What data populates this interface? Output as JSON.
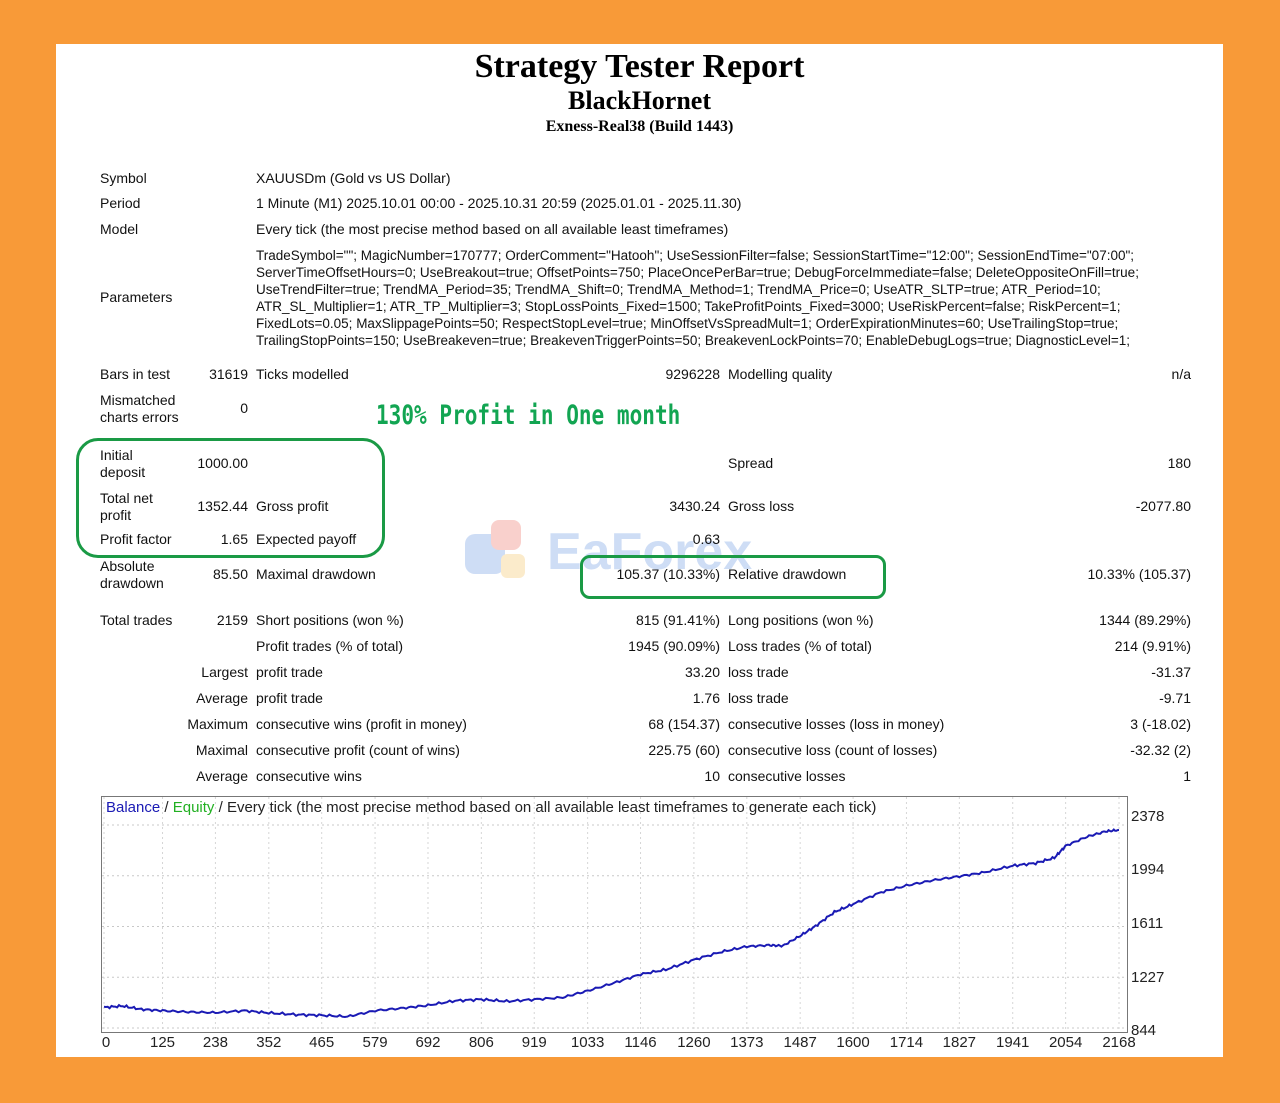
{
  "report": {
    "title": "Strategy Tester Report",
    "expert": "BlackHornet",
    "server": "Exness-Real38 (Build 1443)"
  },
  "info": {
    "symbol_label": "Symbol",
    "symbol_value": "XAUUSDm (Gold vs US Dollar)",
    "period_label": "Period",
    "period_value": "1 Minute (M1) 2025.10.01 00:00 - 2025.10.31 20:59 (2025.01.01 - 2025.11.30)",
    "model_label": "Model",
    "model_value": "Every tick (the most precise method based on all available least timeframes)",
    "parameters_label": "Parameters",
    "parameters_value": "TradeSymbol=\"\"; MagicNumber=170777; OrderComment=\"Hatooh\"; UseSessionFilter=false; SessionStartTime=\"12:00\"; SessionEndTime=\"07:00\";\nServerTimeOffsetHours=0; UseBreakout=true; OffsetPoints=750; PlaceOncePerBar=true; DebugForceImmediate=false; DeleteOppositeOnFill=true;\nUseTrendFilter=true; TrendMA_Period=35; TrendMA_Shift=0; TrendMA_Method=1; TrendMA_Price=0; UseATR_SLTP=true; ATR_Period=10;\nATR_SL_Multiplier=1; ATR_TP_Multiplier=3; StopLossPoints_Fixed=1500; TakeProfitPoints_Fixed=3000; UseRiskPercent=false; RiskPercent=1;\nFixedLots=0.05; MaxSlippagePoints=50; RespectStopLevel=true; MinOffsetVsSpreadMult=1; OrderExpirationMinutes=60; UseTrailingStop=true;\nTrailingStopPoints=150; UseBreakeven=true; BreakevenTriggerPoints=50; BreakevenLockPoints=70; EnableDebugLogs=true; DiagnosticLevel=1;"
  },
  "stats": {
    "bars_label": "Bars in test",
    "bars_value": "31619",
    "ticks_label": "Ticks modelled",
    "ticks_value": "9296228",
    "quality_label": "Modelling quality",
    "quality_value": "n/a",
    "mismatched_label_1": "Mismatched",
    "mismatched_label_2": "charts errors",
    "mismatched_value": "0",
    "initial_label_1": "Initial",
    "initial_label_2": "deposit",
    "initial_value": "1000.00",
    "spread_label": "Spread",
    "spread_value": "180",
    "net_label_1": "Total net",
    "net_label_2": "profit",
    "net_value": "1352.44",
    "gross_profit_label": "Gross profit",
    "gross_profit_value": "3430.24",
    "gross_loss_label": "Gross loss",
    "gross_loss_value": "-2077.80",
    "pf_label": "Profit factor",
    "pf_value": "1.65",
    "ep_label": "Expected payoff",
    "ep_value": "0.63",
    "abs_dd_label_1": "Absolute",
    "abs_dd_label_2": "drawdown",
    "abs_dd_value": "85.50",
    "max_dd_label": "Maximal drawdown",
    "max_dd_value": "105.37 (10.33%)",
    "rel_dd_label": "Relative drawdown",
    "rel_dd_value": "10.33% (105.37)",
    "total_trades_label": "Total trades",
    "total_trades_value": "2159",
    "short_label": "Short positions (won %)",
    "short_value": "815 (91.41%)",
    "long_label": "Long positions (won %)",
    "long_value": "1344 (89.29%)",
    "profit_trades_label": "Profit trades (% of total)",
    "profit_trades_value": "1945 (90.09%)",
    "loss_trades_label": "Loss trades (% of total)",
    "loss_trades_value": "214 (9.91%)",
    "largest_label": "Largest",
    "largest_profit_label": "profit trade",
    "largest_profit_value": "33.20",
    "largest_loss_label": "loss trade",
    "largest_loss_value": "-31.37",
    "average_label": "Average",
    "average_profit_label": "profit trade",
    "average_profit_value": "1.76",
    "average_loss_label": "loss trade",
    "average_loss_value": "-9.71",
    "maximum_label": "Maximum",
    "max_cons_wins_label": "consecutive wins (profit in money)",
    "max_cons_wins_value": "68 (154.37)",
    "max_cons_losses_label": "consecutive losses (loss in money)",
    "max_cons_losses_value": "3 (-18.02)",
    "maximal_label": "Maximal",
    "maximal_cons_profit_label": "consecutive profit (count of wins)",
    "maximal_cons_profit_value": "225.75 (60)",
    "maximal_cons_loss_label": "consecutive loss (count of losses)",
    "maximal_cons_loss_value": "-32.32 (2)",
    "average2_label": "Average",
    "avg_cons_wins_label": "consecutive wins",
    "avg_cons_wins_value": "10",
    "avg_cons_losses_label": "consecutive losses",
    "avg_cons_losses_value": "1"
  },
  "overlay": {
    "caption": "130% Profit in One month",
    "highlight_color": "#1a9a45",
    "watermark": "EaForex"
  },
  "chart_data": {
    "type": "line",
    "title_parts": [
      "Balance",
      "Equity",
      "Every tick (the most precise method based on all available least timeframes to generate each tick)"
    ],
    "legend_separator": "/",
    "colors": {
      "balance": "#1a1ab4",
      "equity": "#22b022"
    },
    "yticks": [
      "2378",
      "1994",
      "1611",
      "1227",
      "844"
    ],
    "xticks": [
      "0",
      "125",
      "238",
      "352",
      "465",
      "579",
      "692",
      "806",
      "919",
      "1033",
      "1146",
      "1260",
      "1373",
      "1487",
      "1600",
      "1714",
      "1827",
      "1941",
      "2054",
      "2168"
    ],
    "ylim": [
      844,
      2378
    ],
    "xlim": [
      0,
      2168
    ],
    "series": [
      {
        "name": "Balance",
        "x": [
          0,
          40,
          80,
          125,
          180,
          238,
          300,
          352,
          410,
          465,
          520,
          579,
          640,
          692,
          750,
          806,
          860,
          919,
          980,
          1033,
          1090,
          1146,
          1200,
          1260,
          1320,
          1373,
          1420,
          1450,
          1487,
          1520,
          1560,
          1600,
          1660,
          1714,
          1770,
          1827,
          1880,
          1941,
          1990,
          2030,
          2054,
          2100,
          2140,
          2168
        ],
        "values": [
          1000,
          1010,
          985,
          975,
          965,
          960,
          975,
          958,
          945,
          940,
          930,
          975,
          995,
          1015,
          1050,
          1060,
          1045,
          1060,
          1075,
          1125,
          1185,
          1250,
          1285,
          1360,
          1420,
          1460,
          1470,
          1465,
          1540,
          1615,
          1720,
          1780,
          1870,
          1920,
          1960,
          1990,
          2020,
          2070,
          2090,
          2130,
          2220,
          2290,
          2330,
          2340
        ]
      }
    ]
  }
}
